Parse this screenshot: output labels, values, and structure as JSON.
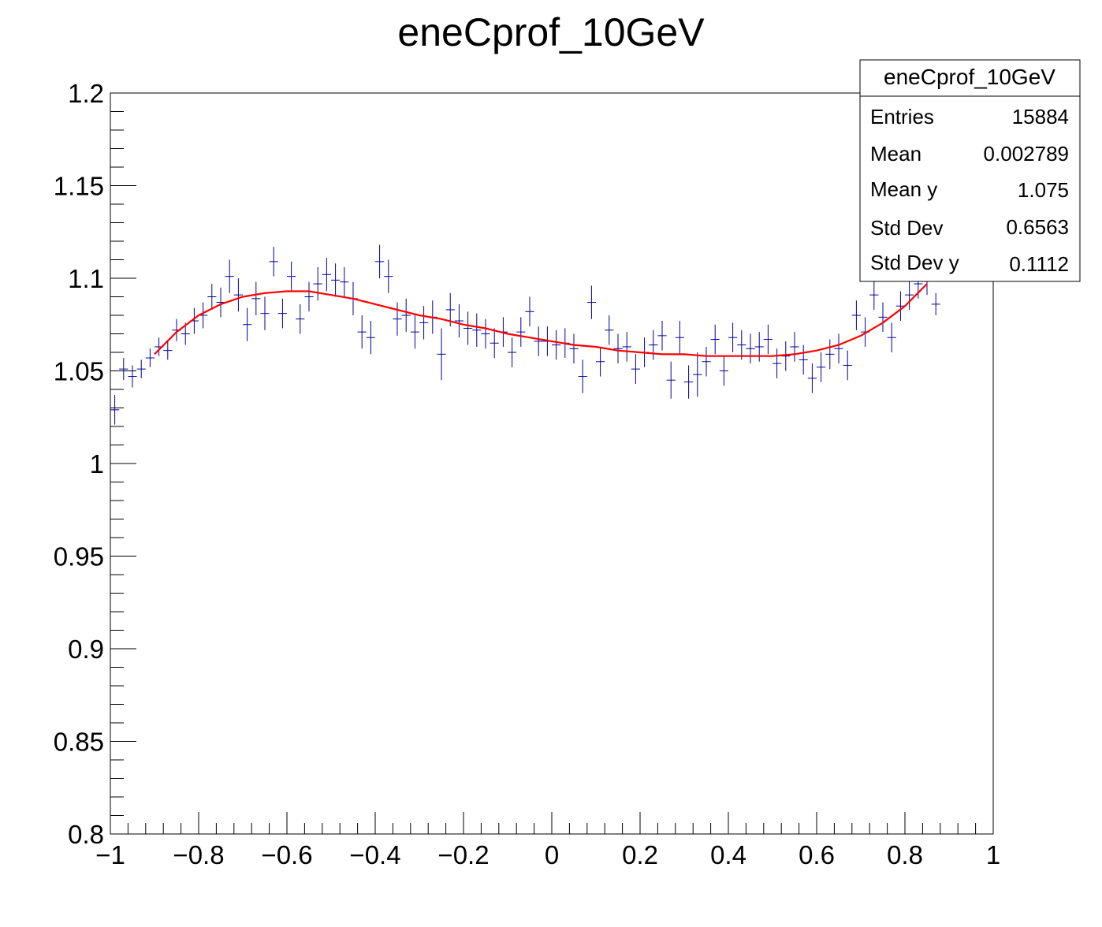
{
  "chart_data": {
    "type": "scatter",
    "title": "eneCprof_10GeV",
    "xlabel": "",
    "ylabel": "",
    "xlim": [
      -1,
      1
    ],
    "ylim": [
      0.8,
      1.2
    ],
    "grid": false,
    "x_ticks": [
      -1,
      -0.8,
      -0.6,
      -0.4,
      -0.2,
      0,
      0.2,
      0.4,
      0.6,
      0.8,
      1
    ],
    "x_tick_labels": [
      "−1",
      "−0.8",
      "−0.6",
      "−0.4",
      "−0.2",
      "0",
      "0.2",
      "0.4",
      "0.6",
      "0.8",
      "1"
    ],
    "y_ticks": [
      0.8,
      0.85,
      0.9,
      0.95,
      1,
      1.05,
      1.1,
      1.15,
      1.2
    ],
    "y_tick_labels": [
      "0.8",
      "0.85",
      "0.9",
      "0.95",
      "1",
      "1.05",
      "1.1",
      "1.15",
      "1.2"
    ],
    "colors": {
      "profile": "#000099",
      "fit": "#ff0000"
    },
    "profile": {
      "bin_width": 0.02,
      "x": [
        -0.99,
        -0.97,
        -0.95,
        -0.93,
        -0.91,
        -0.89,
        -0.87,
        -0.85,
        -0.83,
        -0.81,
        -0.79,
        -0.77,
        -0.75,
        -0.73,
        -0.71,
        -0.69,
        -0.67,
        -0.65,
        -0.63,
        -0.61,
        -0.59,
        -0.57,
        -0.55,
        -0.53,
        -0.51,
        -0.49,
        -0.47,
        -0.45,
        -0.43,
        -0.41,
        -0.39,
        -0.37,
        -0.35,
        -0.33,
        -0.31,
        -0.29,
        -0.27,
        -0.25,
        -0.23,
        -0.21,
        -0.19,
        -0.17,
        -0.15,
        -0.13,
        -0.11,
        -0.09,
        -0.07,
        -0.05,
        -0.03,
        -0.01,
        0.01,
        0.03,
        0.05,
        0.07,
        0.09,
        0.11,
        0.13,
        0.15,
        0.17,
        0.19,
        0.21,
        0.23,
        0.25,
        0.27,
        0.29,
        0.31,
        0.33,
        0.35,
        0.37,
        0.39,
        0.41,
        0.43,
        0.45,
        0.47,
        0.49,
        0.51,
        0.53,
        0.55,
        0.57,
        0.59,
        0.61,
        0.63,
        0.65,
        0.67,
        0.69,
        0.71,
        0.73,
        0.75,
        0.77,
        0.79,
        0.81,
        0.83,
        0.85,
        0.87
      ],
      "y": [
        1.029,
        1.051,
        1.047,
        1.051,
        1.057,
        1.063,
        1.061,
        1.072,
        1.07,
        1.077,
        1.08,
        1.09,
        1.087,
        1.101,
        1.091,
        1.075,
        1.089,
        1.081,
        1.109,
        1.081,
        1.101,
        1.078,
        1.09,
        1.097,
        1.102,
        1.099,
        1.098,
        1.089,
        1.071,
        1.068,
        1.109,
        1.101,
        1.078,
        1.08,
        1.071,
        1.076,
        1.079,
        1.059,
        1.083,
        1.077,
        1.073,
        1.072,
        1.07,
        1.065,
        1.071,
        1.06,
        1.071,
        1.082,
        1.066,
        1.066,
        1.064,
        1.065,
        1.062,
        1.047,
        1.087,
        1.055,
        1.072,
        1.062,
        1.063,
        1.051,
        1.06,
        1.064,
        1.069,
        1.045,
        1.068,
        1.044,
        1.048,
        1.055,
        1.067,
        1.05,
        1.068,
        1.064,
        1.062,
        1.063,
        1.067,
        1.054,
        1.058,
        1.063,
        1.056,
        1.046,
        1.052,
        1.059,
        1.062,
        1.053,
        1.08,
        1.071,
        1.091,
        1.079,
        1.068,
        1.085,
        1.091,
        1.097,
        1.099,
        1.086
      ],
      "err": [
        0.008,
        0.006,
        0.006,
        0.005,
        0.005,
        0.005,
        0.005,
        0.006,
        0.006,
        0.007,
        0.007,
        0.007,
        0.008,
        0.009,
        0.009,
        0.009,
        0.009,
        0.009,
        0.008,
        0.008,
        0.008,
        0.008,
        0.008,
        0.009,
        0.009,
        0.009,
        0.008,
        0.009,
        0.009,
        0.009,
        0.009,
        0.009,
        0.009,
        0.009,
        0.009,
        0.009,
        0.009,
        0.014,
        0.009,
        0.009,
        0.009,
        0.009,
        0.008,
        0.008,
        0.008,
        0.008,
        0.008,
        0.008,
        0.008,
        0.008,
        0.008,
        0.008,
        0.008,
        0.009,
        0.009,
        0.008,
        0.008,
        0.008,
        0.008,
        0.008,
        0.008,
        0.008,
        0.008,
        0.01,
        0.009,
        0.009,
        0.012,
        0.008,
        0.008,
        0.008,
        0.008,
        0.008,
        0.008,
        0.008,
        0.008,
        0.008,
        0.008,
        0.008,
        0.008,
        0.008,
        0.008,
        0.008,
        0.008,
        0.008,
        0.008,
        0.008,
        0.008,
        0.008,
        0.008,
        0.008,
        0.008,
        0.008,
        0.008,
        0.006
      ]
    },
    "fit": {
      "x": [
        -0.9,
        -0.85,
        -0.8,
        -0.75,
        -0.7,
        -0.65,
        -0.6,
        -0.55,
        -0.5,
        -0.45,
        -0.4,
        -0.35,
        -0.3,
        -0.25,
        -0.2,
        -0.15,
        -0.1,
        -0.05,
        0.0,
        0.05,
        0.1,
        0.15,
        0.2,
        0.25,
        0.3,
        0.35,
        0.4,
        0.45,
        0.5,
        0.55,
        0.6,
        0.65,
        0.7,
        0.75,
        0.8,
        0.85
      ],
      "y": [
        1.059,
        1.071,
        1.08,
        1.086,
        1.09,
        1.092,
        1.093,
        1.093,
        1.091,
        1.089,
        1.086,
        1.083,
        1.08,
        1.078,
        1.075,
        1.073,
        1.07,
        1.068,
        1.066,
        1.064,
        1.063,
        1.061,
        1.06,
        1.059,
        1.059,
        1.058,
        1.058,
        1.058,
        1.058,
        1.059,
        1.061,
        1.064,
        1.069,
        1.076,
        1.085,
        1.097
      ]
    }
  },
  "stats": {
    "title": "eneCprof_10GeV",
    "rows": [
      {
        "label": "Entries",
        "value": "15884"
      },
      {
        "label": "Mean",
        "value": "0.002789"
      },
      {
        "label": "Mean y",
        "value": "1.075"
      },
      {
        "label": "Std Dev",
        "value": "0.6563"
      },
      {
        "label": "Std Dev y",
        "value": "0.1112"
      }
    ]
  }
}
